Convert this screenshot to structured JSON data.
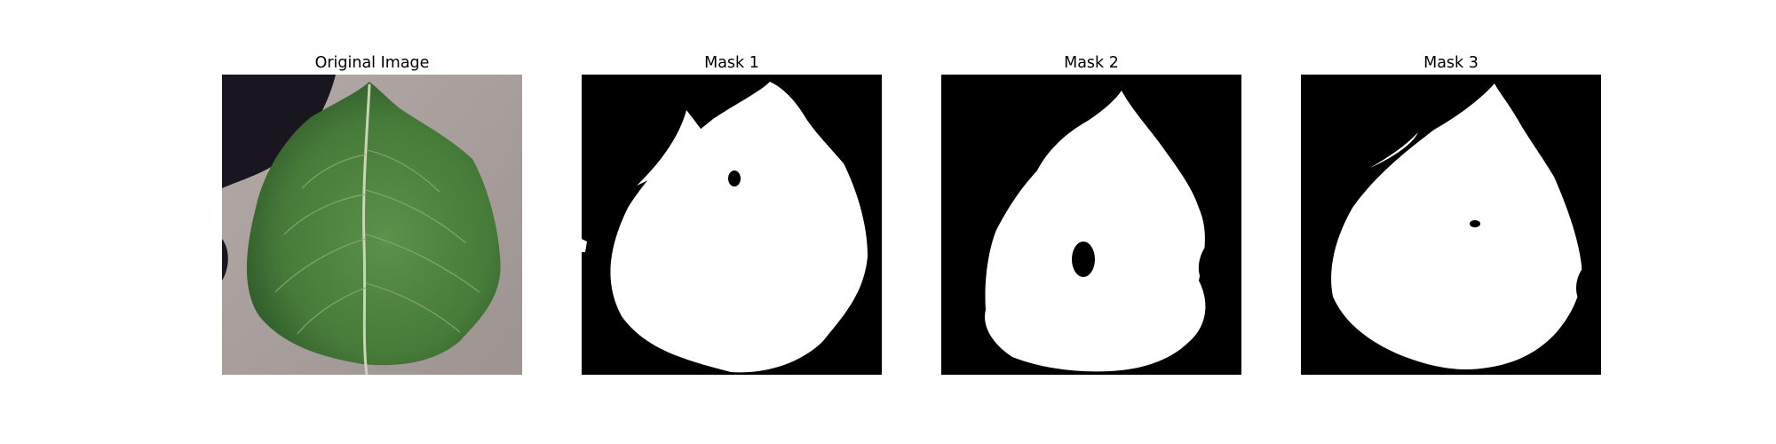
{
  "figure": {
    "panels": [
      {
        "title": "Original Image"
      },
      {
        "title": "Mask 1"
      },
      {
        "title": "Mask 2"
      },
      {
        "title": "Mask 3"
      }
    ]
  },
  "colors": {
    "background": "#ffffff",
    "mask_background": "#000000",
    "mask_foreground": "#ffffff",
    "leaf_green": "#4f8540",
    "leaf_dark": "#2f5a2b",
    "surface_gray": "#a79d9b",
    "shadow": "#1a1620"
  }
}
